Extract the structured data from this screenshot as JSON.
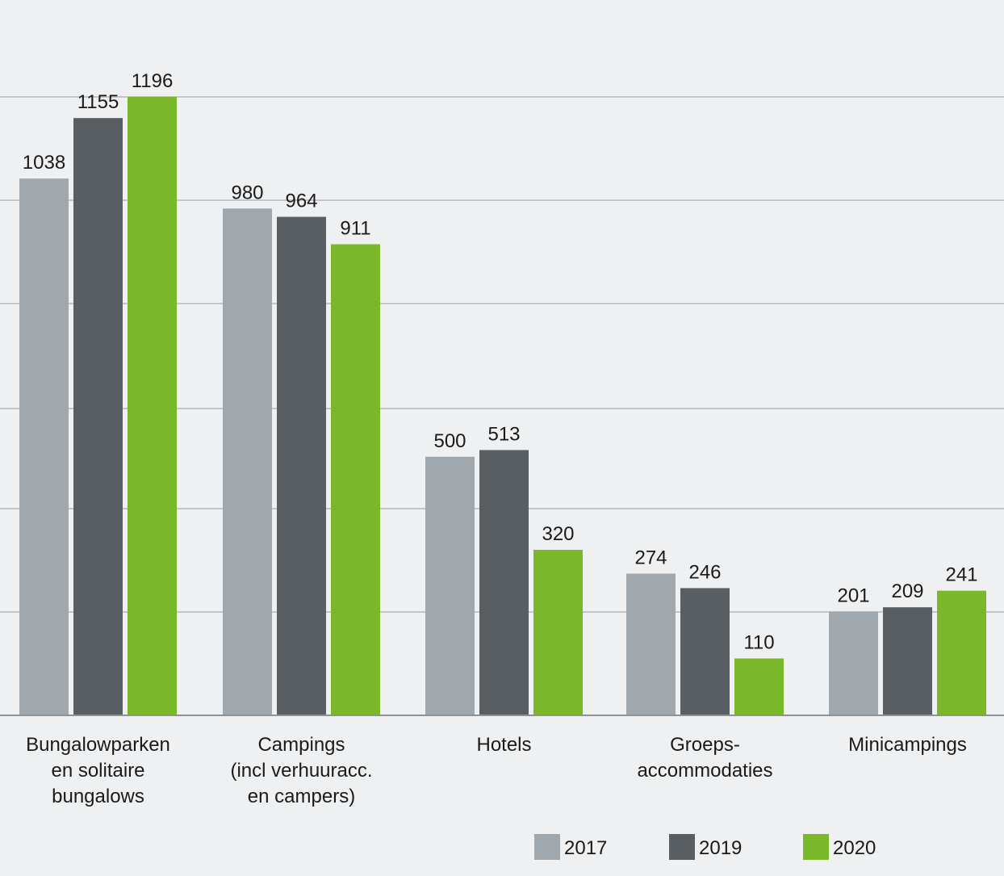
{
  "chart_data": {
    "type": "bar",
    "title": "",
    "xlabel": "",
    "ylabel": "",
    "ylim": [
      0,
      1200
    ],
    "grid": true,
    "legend_position": "bottom-right",
    "categories": [
      [
        "Bungalowparken",
        "en solitaire",
        "bungalows"
      ],
      [
        "Campings",
        "(incl verhuuracc.",
        "en campers)"
      ],
      [
        "Hotels"
      ],
      [
        "Groeps-",
        "accommodaties"
      ],
      [
        "Minicampings"
      ]
    ],
    "series": [
      {
        "name": "2017",
        "color": "#a0a8ae",
        "values": [
          1038,
          980,
          500,
          274,
          201
        ]
      },
      {
        "name": "2019",
        "color": "#585e62",
        "values": [
          1155,
          964,
          513,
          246,
          209
        ]
      },
      {
        "name": "2020",
        "color": "#7ab72a",
        "values": [
          1196,
          911,
          320,
          110,
          241
        ]
      }
    ]
  }
}
